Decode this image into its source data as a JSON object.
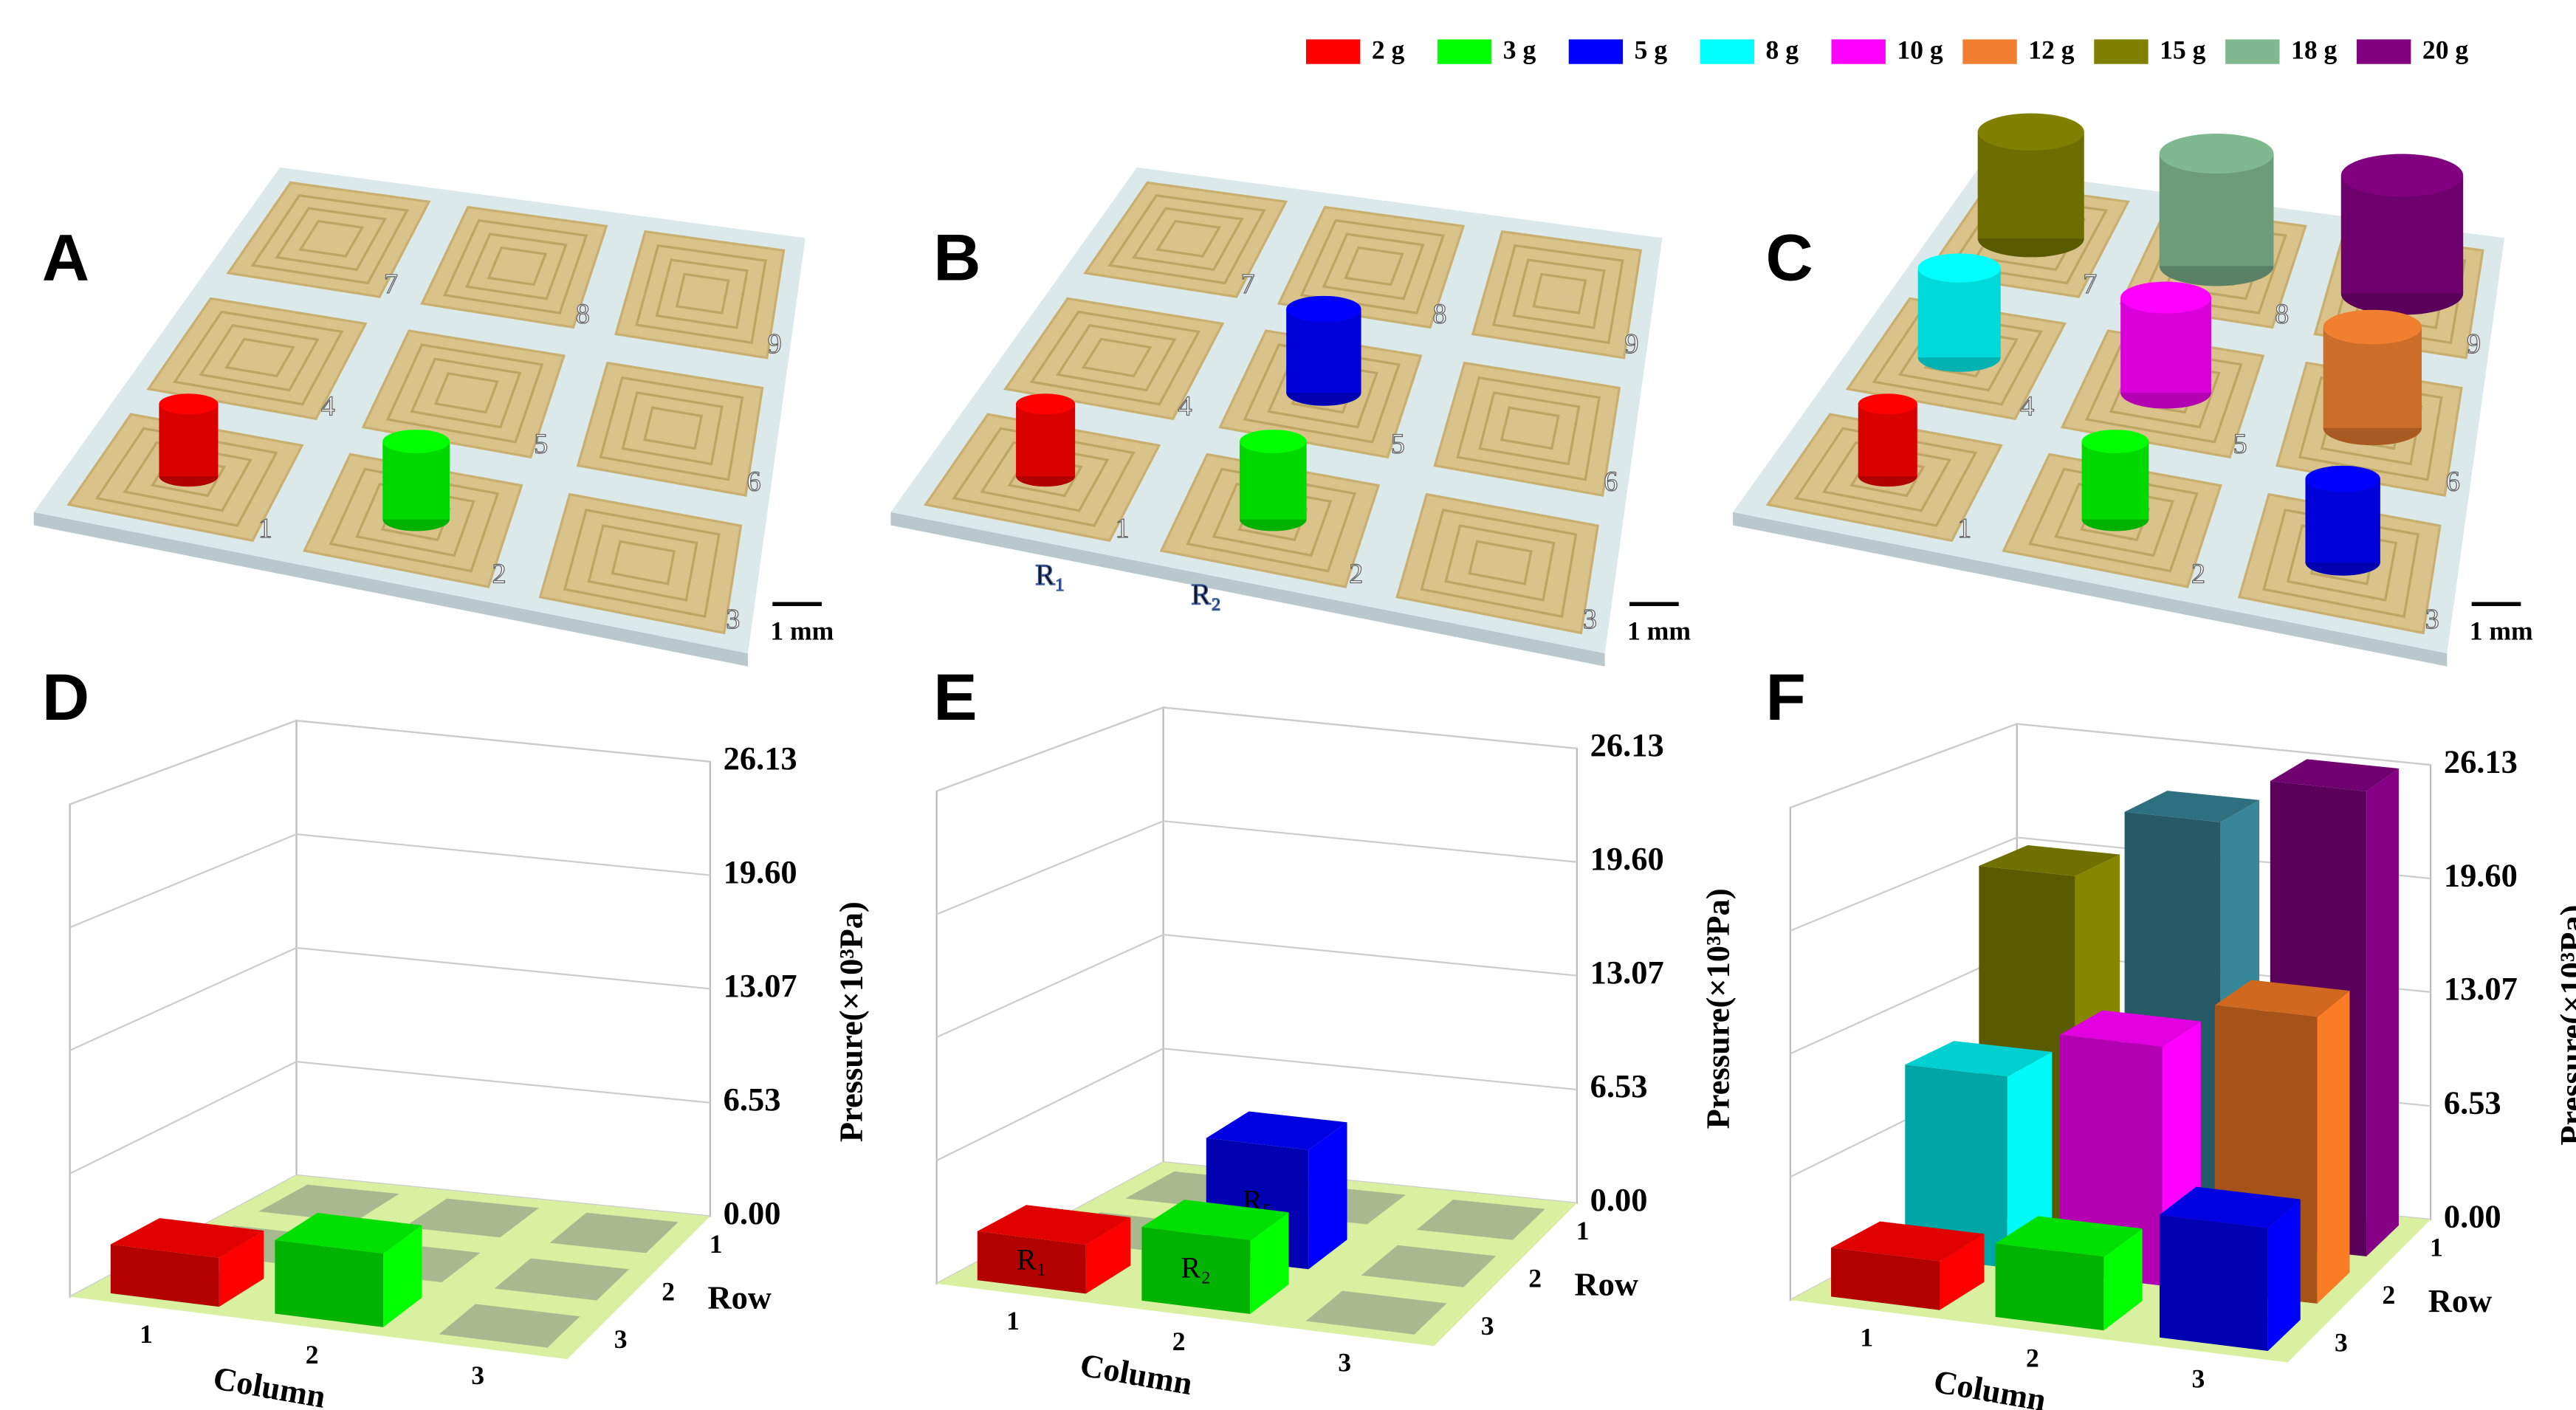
{
  "figure": {
    "panels": [
      "A",
      "B",
      "C",
      "D",
      "E",
      "F"
    ],
    "legend": [
      {
        "label": "2 g",
        "color": "#ff0000"
      },
      {
        "label": "3 g",
        "color": "#00ff00"
      },
      {
        "label": "5 g",
        "color": "#0000ff"
      },
      {
        "label": "8 g",
        "color": "#00ffff"
      },
      {
        "label": "10 g",
        "color": "#ff00ff"
      },
      {
        "label": "12 g",
        "color": "#f08030"
      },
      {
        "label": "15 g",
        "color": "#808000"
      },
      {
        "label": "18 g",
        "color": "#80b890"
      },
      {
        "label": "20 g",
        "color": "#800080"
      }
    ],
    "sensor_numbers": [
      "1",
      "2",
      "3",
      "4",
      "5",
      "6",
      "7",
      "8",
      "9"
    ],
    "scale_bar": "1 mm",
    "resistor_labels": [
      "R₁",
      "R₂"
    ]
  },
  "chart_data": [
    {
      "type": "bar3d",
      "y_label": "Pressure(×10³Pa)",
      "x_label": "Column",
      "z_label": "Row",
      "column_ticks": [
        1,
        2,
        3
      ],
      "row_ticks": [
        1,
        2,
        3
      ],
      "ylim": [
        0,
        26.13
      ],
      "yticks": [
        {
          "value": 0,
          "label": "0.00"
        },
        6.53,
        13.07,
        {
          "value": 19.6,
          "label": "19.60"
        },
        26.13
      ],
      "bars": [
        {
          "column": 1,
          "row": 3,
          "value": 2.61,
          "color": "#e00000"
        },
        {
          "column": 2,
          "row": 3,
          "value": 3.92,
          "color": "#00e000"
        }
      ]
    },
    {
      "type": "bar3d",
      "y_label": "Pressure(×10³Pa)",
      "x_label": "Column",
      "z_label": "Row",
      "column_ticks": [
        1,
        2,
        3
      ],
      "row_ticks": [
        1,
        2,
        3
      ],
      "ylim": [
        0,
        26.13
      ],
      "yticks": [
        {
          "value": 0,
          "label": "0.00"
        },
        6.53,
        13.07,
        {
          "value": 19.6,
          "label": "19.60"
        },
        26.13
      ],
      "bars": [
        {
          "column": 2,
          "row": 2,
          "value": 6.53,
          "color": "#0000e0",
          "label": "R₅"
        },
        {
          "column": 1,
          "row": 3,
          "value": 2.61,
          "color": "#e00000",
          "label": "R₁"
        },
        {
          "column": 2,
          "row": 3,
          "value": 3.92,
          "color": "#00e000",
          "label": "R₂"
        }
      ]
    },
    {
      "type": "bar3d",
      "y_label": "Pressure(×10³Pa)",
      "x_label": "Column",
      "z_label": "Row",
      "column_ticks": [
        1,
        2,
        3
      ],
      "row_ticks": [
        1,
        2,
        3
      ],
      "ylim": [
        0,
        26.13
      ],
      "yticks": [
        {
          "value": 0,
          "label": "0.00"
        },
        6.53,
        13.07,
        {
          "value": 19.6,
          "label": "19.60"
        },
        26.13
      ],
      "bars": [
        {
          "column": 1,
          "row": 1,
          "value": 19.6,
          "color": "#707000"
        },
        {
          "column": 2,
          "row": 1,
          "value": 23.52,
          "color": "#2f7080"
        },
        {
          "column": 3,
          "row": 1,
          "value": 26.13,
          "color": "#700070"
        },
        {
          "column": 1,
          "row": 2,
          "value": 10.45,
          "color": "#00d0d0"
        },
        {
          "column": 2,
          "row": 2,
          "value": 13.07,
          "color": "#e000e0"
        },
        {
          "column": 3,
          "row": 2,
          "value": 15.68,
          "color": "#d06820"
        },
        {
          "column": 1,
          "row": 3,
          "value": 2.61,
          "color": "#e00000"
        },
        {
          "column": 2,
          "row": 3,
          "value": 3.92,
          "color": "#00e000"
        },
        {
          "column": 3,
          "row": 3,
          "value": 6.53,
          "color": "#0000e0"
        }
      ]
    }
  ]
}
